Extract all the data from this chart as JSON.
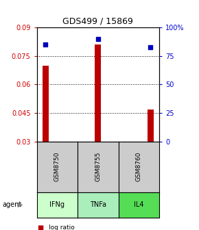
{
  "title": "GDS499 / 15869",
  "categories": [
    "IFNg",
    "TNFa",
    "IL4"
  ],
  "sample_labels": [
    "GSM8750",
    "GSM8755",
    "GSM8760"
  ],
  "log_ratio": [
    0.07,
    0.081,
    0.047
  ],
  "percentile_rank": [
    85,
    90,
    83
  ],
  "ylim_left": [
    0.03,
    0.09
  ],
  "ylim_right": [
    0,
    100
  ],
  "yticks_left": [
    0.03,
    0.045,
    0.06,
    0.075,
    0.09
  ],
  "yticks_right": [
    0,
    25,
    50,
    75,
    100
  ],
  "ytick_labels_left": [
    "0.03",
    "0.045",
    "0.06",
    "0.075",
    "0.09"
  ],
  "ytick_labels_right": [
    "0",
    "25",
    "50",
    "75",
    "100%"
  ],
  "bar_color": "#bb0000",
  "dot_color": "#0000bb",
  "left_axis_color": "#cc0000",
  "right_axis_color": "#0000cc",
  "agent_colors": [
    "#ccffcc",
    "#aaeebb",
    "#55dd55"
  ],
  "sample_box_color": "#cccccc",
  "bar_width": 0.12
}
